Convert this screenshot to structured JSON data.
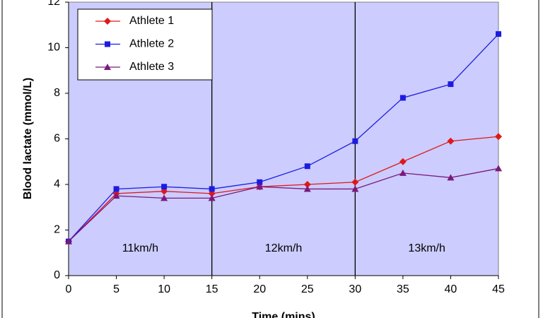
{
  "chart_data": {
    "type": "line",
    "x_label": "Time (mins)",
    "y_label": "Blood lactate (mmol/L)",
    "x": [
      0,
      5,
      10,
      15,
      20,
      25,
      30,
      35,
      40,
      45
    ],
    "series": [
      {
        "name": "Athlete 1",
        "color": "#dd1a1a",
        "marker": "diamond",
        "values": [
          1.5,
          3.6,
          3.7,
          3.6,
          3.9,
          4.0,
          4.1,
          5.0,
          5.9,
          6.1
        ]
      },
      {
        "name": "Athlete 2",
        "color": "#1c1ce0",
        "marker": "square",
        "values": [
          1.5,
          3.8,
          3.9,
          3.8,
          4.1,
          4.8,
          5.9,
          7.8,
          8.4,
          10.6
        ]
      },
      {
        "name": "Athlete 3",
        "color": "#7a1a7a",
        "marker": "triangle",
        "values": [
          1.5,
          3.5,
          3.4,
          3.4,
          3.9,
          3.8,
          3.8,
          4.5,
          4.3,
          4.7
        ]
      }
    ],
    "xlim": [
      0,
      45
    ],
    "xticks": [
      0,
      5,
      10,
      15,
      20,
      25,
      30,
      35,
      40,
      45
    ],
    "ylim": [
      0,
      12
    ],
    "yticks": [
      0,
      2,
      4,
      6,
      8,
      10,
      12
    ],
    "vlines": [
      15,
      30
    ],
    "annotations": [
      "11km/h",
      "12km/h",
      "13km/h"
    ],
    "legend": "upper left",
    "plot_background": "#ccccff"
  }
}
